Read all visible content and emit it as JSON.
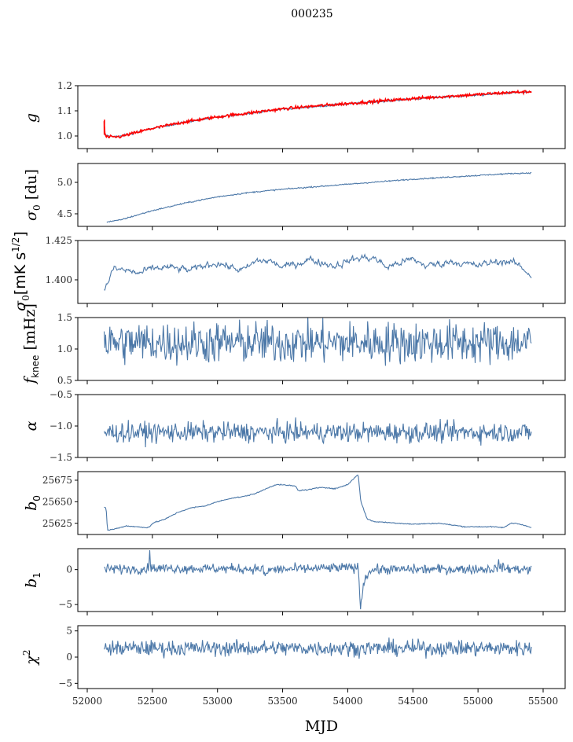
{
  "chart_data": {
    "type": "line",
    "title": "000235",
    "xlabel": "MJD",
    "xlim": [
      51930,
      55700
    ],
    "x_ticks": [
      52000,
      52500,
      53000,
      53500,
      54000,
      54500,
      55000,
      55500
    ],
    "x_tick_labels": [
      "52000",
      "52500",
      "53000",
      "53500",
      "54000",
      "54500",
      "55000",
      "55500"
    ],
    "x_range": [
      52130,
      55410
    ],
    "line_color": "#4c78a8",
    "fit_color": "#ff0000",
    "grid": false,
    "panels": [
      {
        "id": "g",
        "ylabel": "g",
        "ylim": [
          0.95,
          1.2
        ],
        "y_ticks": [
          1.0,
          1.1,
          1.2
        ],
        "y_tick_labels": [
          "1.0",
          "1.1",
          "1.2"
        ],
        "series": [
          {
            "name": "g",
            "color": "#4c78a8",
            "x": [
              52130,
              52160,
              52250,
              52500,
              52750,
              53000,
              53250,
              53500,
              53750,
              54000,
              54250,
              54500,
              54750,
              55000,
              55250,
              55410
            ],
            "y": [
              1.005,
              1.0,
              0.998,
              1.03,
              1.055,
              1.075,
              1.09,
              1.107,
              1.117,
              1.127,
              1.137,
              1.147,
              1.155,
              1.163,
              1.172,
              1.176
            ],
            "noise": 0.002
          },
          {
            "name": "g fit",
            "color": "#ff0000",
            "x": [
              52130,
              52135,
              52140,
              52160,
              52250,
              52500,
              52750,
              53000,
              53250,
              53500,
              53750,
              54000,
              54250,
              54500,
              54750,
              55000,
              55250,
              55410
            ],
            "y": [
              1.06,
              1.01,
              1.0,
              0.995,
              0.997,
              1.03,
              1.056,
              1.076,
              1.092,
              1.108,
              1.119,
              1.129,
              1.139,
              1.149,
              1.157,
              1.165,
              1.173,
              1.176
            ],
            "noise": 0.003
          }
        ]
      },
      {
        "id": "sigma0_du",
        "ylabel": "σ0 [du]",
        "ylim": [
          4.3,
          5.3
        ],
        "y_ticks": [
          4.5,
          5.0
        ],
        "y_tick_labels": [
          "4.5",
          "5.0"
        ],
        "series": [
          {
            "name": "sigma0",
            "color": "#4c78a8",
            "x": [
              52150,
              52250,
              52500,
              52750,
              53000,
              53250,
              53500,
              53750,
              54000,
              54250,
              54500,
              54750,
              55000,
              55250,
              55410
            ],
            "y": [
              4.37,
              4.4,
              4.55,
              4.67,
              4.77,
              4.84,
              4.89,
              4.93,
              4.97,
              5.01,
              5.05,
              5.08,
              5.11,
              5.14,
              5.15
            ],
            "noise": 0.005
          }
        ]
      },
      {
        "id": "sigma0_mk",
        "ylabel": "σ0[mK s^1/2]",
        "ylim": [
          1.385,
          1.425
        ],
        "y_ticks": [
          1.4,
          1.425
        ],
        "y_tick_labels": [
          "1.400",
          "1.425"
        ],
        "series": [
          {
            "name": "sigma0 calibrated",
            "color": "#4c78a8",
            "x": [
              52130,
              52150,
              52200,
              52300,
              52400,
              52500,
              52600,
              52700,
              52800,
              52900,
              53000,
              53100,
              53200,
              53300,
              53400,
              53500,
              53600,
              53700,
              53800,
              53900,
              54000,
              54100,
              54200,
              54300,
              54400,
              54500,
              54600,
              54700,
              54800,
              54900,
              55000,
              55100,
              55200,
              55300,
              55410
            ],
            "y": [
              1.393,
              1.397,
              1.407,
              1.406,
              1.404,
              1.407,
              1.408,
              1.407,
              1.406,
              1.409,
              1.411,
              1.408,
              1.406,
              1.412,
              1.412,
              1.408,
              1.41,
              1.413,
              1.411,
              1.409,
              1.412,
              1.414,
              1.414,
              1.408,
              1.411,
              1.413,
              1.409,
              1.41,
              1.412,
              1.41,
              1.409,
              1.411,
              1.412,
              1.41,
              1.403
            ],
            "noise": 0.0015
          }
        ]
      },
      {
        "id": "fknee",
        "ylabel": "f_knee [mHz]",
        "ylim": [
          0.5,
          1.5
        ],
        "y_ticks": [
          0.5,
          1.0,
          1.5
        ],
        "y_tick_labels": [
          "0.5",
          "1.0",
          "1.5"
        ],
        "series": [
          {
            "name": "fknee",
            "color": "#4c78a8",
            "x": [
              52130,
              55410
            ],
            "y": [
              1.1,
              1.1
            ],
            "noise": 0.17,
            "clip": [
              0.55,
              1.5
            ]
          }
        ]
      },
      {
        "id": "alpha",
        "ylabel": "α",
        "ylim": [
          -1.5,
          -0.5
        ],
        "y_ticks": [
          -1.5,
          -1.0,
          -0.5
        ],
        "y_tick_labels": [
          "−1.5",
          "−1.0",
          "−0.5"
        ],
        "series": [
          {
            "name": "alpha",
            "color": "#4c78a8",
            "x": [
              52130,
              55410
            ],
            "y": [
              -1.1,
              -1.1
            ],
            "noise": 0.08
          }
        ]
      },
      {
        "id": "b0",
        "ylabel": "b0",
        "ylim": [
          25612,
          25685
        ],
        "y_ticks": [
          25625,
          25650,
          25675
        ],
        "y_tick_labels": [
          "25625",
          "25650",
          "25675"
        ],
        "series": [
          {
            "name": "b0",
            "color": "#4c78a8",
            "x": [
              52130,
              52145,
              52155,
              52200,
              52300,
              52450,
              52480,
              52500,
              52600,
              52700,
              52800,
              52900,
              53000,
              53100,
              53200,
              53300,
              53400,
              53450,
              53550,
              53600,
              53620,
              53700,
              53800,
              53900,
              54000,
              54080,
              54100,
              54150,
              54200,
              54300,
              54500,
              54700,
              54900,
              55100,
              55200,
              55250,
              55300,
              55410
            ],
            "y": [
              25644,
              25642,
              25617,
              25618,
              25622,
              25620,
              25621,
              25625,
              25630,
              25638,
              25643,
              25645,
              25650,
              25654,
              25656,
              25660,
              25667,
              25670,
              25669,
              25668,
              25663,
              25664,
              25667,
              25665,
              25670,
              25682,
              25650,
              25630,
              25627,
              25626,
              25624,
              25625,
              25621,
              25621,
              25620,
              25625,
              25625,
              25620
            ],
            "noise": 0.3
          }
        ]
      },
      {
        "id": "b1",
        "ylabel": "b1",
        "ylim": [
          -6,
          3
        ],
        "y_ticks": [
          -5,
          0
        ],
        "y_tick_labels": [
          "−5",
          "0"
        ],
        "series": [
          {
            "name": "b1",
            "color": "#4c78a8",
            "x": [
              52130,
              52470,
              52480,
              52490,
              53350,
              53370,
              53390,
              54080,
              54090,
              54100,
              54120,
              54150,
              54200,
              55150,
              55160,
              55170,
              55410
            ],
            "y": [
              0.1,
              0.1,
              2.8,
              0.2,
              0.1,
              -1.2,
              0.0,
              0.3,
              -3.0,
              -5.4,
              -2.0,
              -0.5,
              0.0,
              0.1,
              1.6,
              0.2,
              0.0
            ],
            "noise": 0.35
          }
        ]
      },
      {
        "id": "chi2",
        "ylabel": "χ^2",
        "ylim": [
          -6,
          6
        ],
        "y_ticks": [
          -5,
          0,
          5
        ],
        "y_tick_labels": [
          "−5",
          "0",
          "5"
        ],
        "series": [
          {
            "name": "chi2",
            "color": "#4c78a8",
            "x": [
              52130,
              55410
            ],
            "y": [
              1.7,
              1.7
            ],
            "noise": 0.75
          }
        ]
      }
    ]
  }
}
